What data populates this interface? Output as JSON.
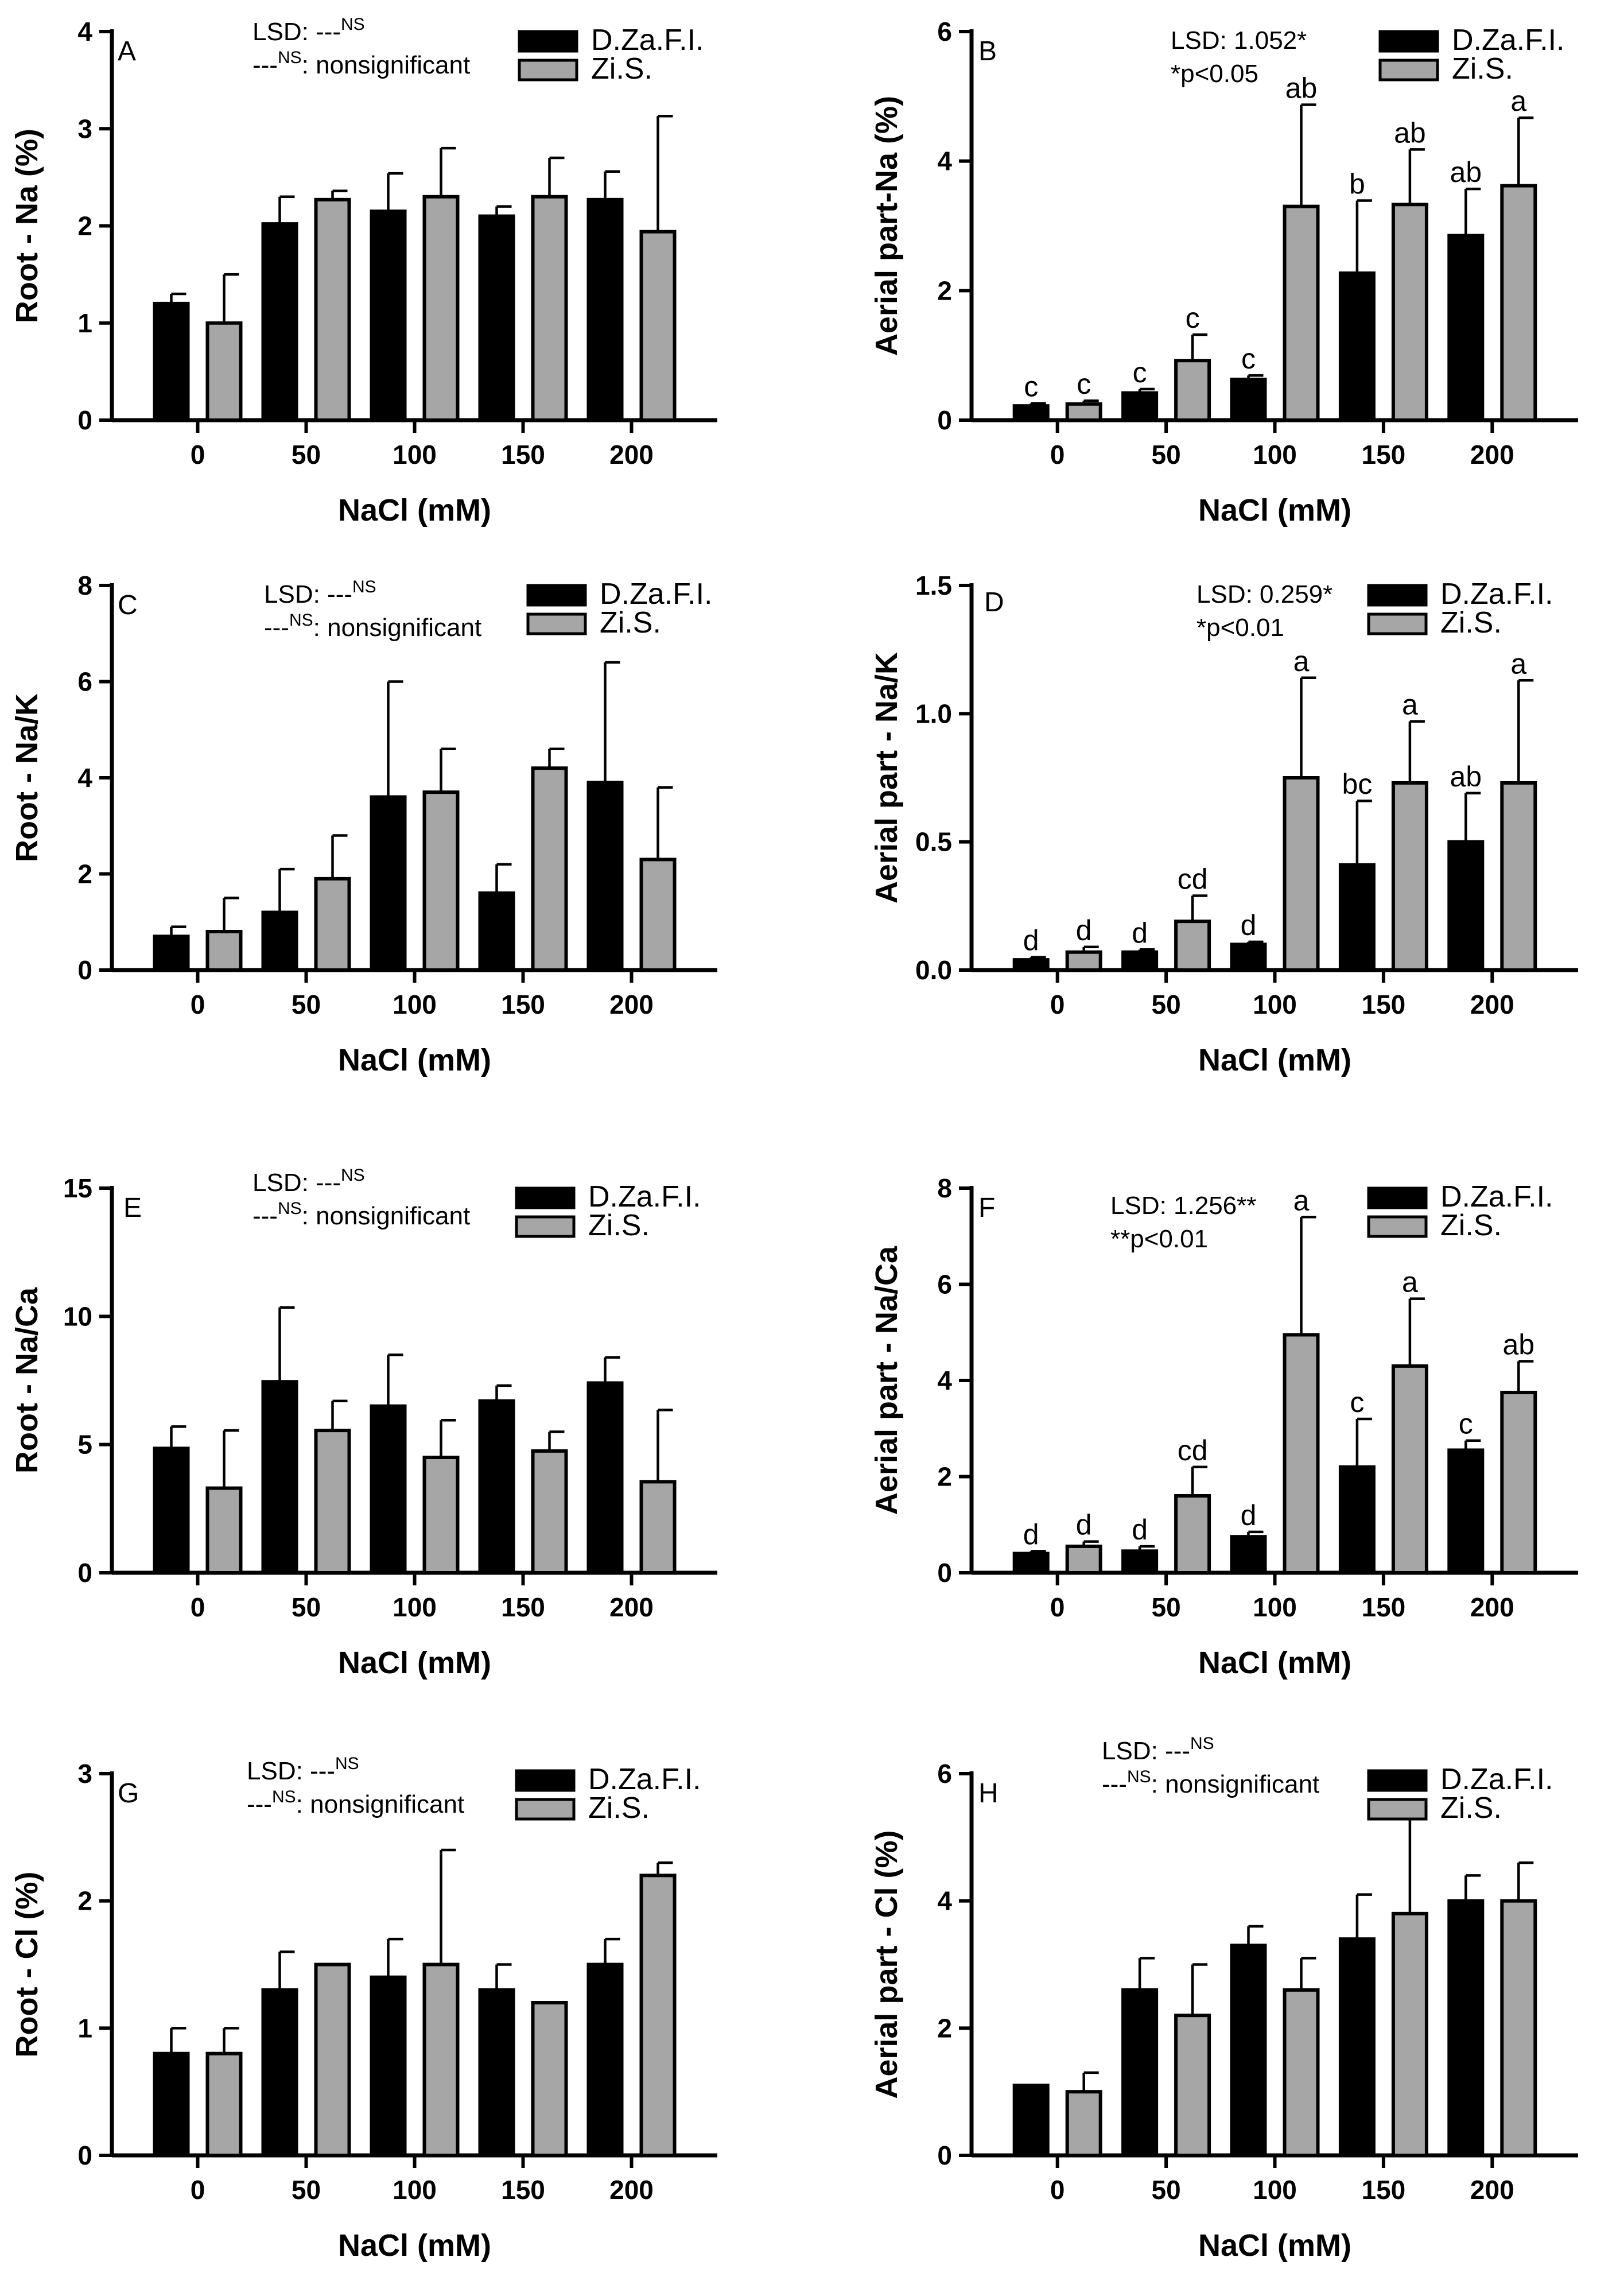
{
  "legend": {
    "series": [
      {
        "name": "D.Za.F.I.",
        "color": "#000000"
      },
      {
        "name": "Zi.S.",
        "color": "#a6a6a6"
      }
    ]
  },
  "chart_data": [
    {
      "panel": "A",
      "type": "bar",
      "title": "",
      "xlabel": "NaCl (mM)",
      "ylabel": "Root - Na (%)",
      "categories": [
        "0",
        "50",
        "100",
        "150",
        "200"
      ],
      "ylim": [
        0,
        4
      ],
      "yticks": [
        "0",
        "1",
        "2",
        "3",
        "4"
      ],
      "series": [
        {
          "name": "D.Za.F.I.",
          "values": [
            1.2,
            2.02,
            2.15,
            2.1,
            2.27
          ],
          "errors": [
            0.1,
            0.28,
            0.39,
            0.1,
            0.29
          ],
          "labels": []
        },
        {
          "name": "Zi.S.",
          "values": [
            1.0,
            2.27,
            2.3,
            2.3,
            1.94
          ],
          "errors": [
            0.5,
            0.09,
            0.5,
            0.4,
            1.19
          ],
          "labels": []
        }
      ],
      "annotation": {
        "lsd": "LSD: ---",
        "lsd_sup": "NS",
        "note_prefix": "---",
        "note_sup": "NS",
        "note": ": nonsignificant"
      }
    },
    {
      "panel": "B",
      "type": "bar",
      "title": "",
      "xlabel": "NaCl (mM)",
      "ylabel": "Aerial part-Na (%)",
      "categories": [
        "0",
        "50",
        "100",
        "150",
        "200"
      ],
      "ylim": [
        0,
        6
      ],
      "yticks": [
        "0",
        "2",
        "4",
        "6"
      ],
      "series": [
        {
          "name": "D.Za.F.I.",
          "values": [
            0.22,
            0.42,
            0.63,
            2.27,
            2.85
          ],
          "errors": [
            0.04,
            0.06,
            0.06,
            1.12,
            0.72
          ],
          "labels": [
            "c",
            "c",
            "c",
            "b",
            "ab"
          ]
        },
        {
          "name": "Zi.S.",
          "values": [
            0.25,
            0.92,
            3.3,
            3.33,
            3.62
          ],
          "errors": [
            0.05,
            0.4,
            1.57,
            0.85,
            1.05
          ],
          "labels": [
            "c",
            "c",
            "ab",
            "ab",
            "a"
          ]
        }
      ],
      "annotation": {
        "lsd": "LSD: 1.052*",
        "lsd_sup": "",
        "note_prefix": "",
        "note_sup": "",
        "note": "*p<0.05"
      }
    },
    {
      "panel": "C",
      "type": "bar",
      "title": "",
      "xlabel": "NaCl (mM)",
      "ylabel": "Root - Na/K",
      "categories": [
        "0",
        "50",
        "100",
        "150",
        "200"
      ],
      "ylim": [
        0,
        8
      ],
      "yticks": [
        "0",
        "2",
        "4",
        "6",
        "8"
      ],
      "series": [
        {
          "name": "D.Za.F.I.",
          "values": [
            0.7,
            1.2,
            3.6,
            1.6,
            3.9
          ],
          "errors": [
            0.2,
            0.9,
            2.4,
            0.6,
            2.5
          ],
          "labels": []
        },
        {
          "name": "Zi.S.",
          "values": [
            0.8,
            1.9,
            3.7,
            4.2,
            2.3
          ],
          "errors": [
            0.7,
            0.9,
            0.9,
            0.4,
            1.5
          ],
          "labels": []
        }
      ],
      "annotation": {
        "lsd": "LSD: ---",
        "lsd_sup": "NS",
        "note_prefix": "---",
        "note_sup": "NS",
        "note": ": nonsignificant"
      }
    },
    {
      "panel": "D",
      "type": "bar",
      "title": "",
      "xlabel": "NaCl (mM)",
      "ylabel": "Aerial part - Na/K",
      "categories": [
        "0",
        "50",
        "100",
        "150",
        "200"
      ],
      "ylim": [
        0,
        1.5
      ],
      "yticks": [
        "0.0",
        "0.5",
        "1.0",
        "1.5"
      ],
      "series": [
        {
          "name": "D.Za.F.I.",
          "values": [
            0.04,
            0.07,
            0.1,
            0.41,
            0.5
          ],
          "errors": [
            0.01,
            0.01,
            0.01,
            0.25,
            0.19
          ],
          "labels": [
            "d",
            "d",
            "d",
            "bc",
            "ab"
          ]
        },
        {
          "name": "Zi.S.",
          "values": [
            0.07,
            0.19,
            0.75,
            0.73,
            0.73
          ],
          "errors": [
            0.02,
            0.1,
            0.39,
            0.24,
            0.4
          ],
          "labels": [
            "d",
            "cd",
            "a",
            "a",
            "a"
          ]
        }
      ],
      "annotation": {
        "lsd": "LSD: 0.259*",
        "lsd_sup": "",
        "note_prefix": "",
        "note_sup": "",
        "note": "*p<0.01"
      }
    },
    {
      "panel": "E",
      "type": "bar",
      "title": "",
      "xlabel": "NaCl (mM)",
      "ylabel": "Root - Na/Ca",
      "categories": [
        "0",
        "50",
        "100",
        "150",
        "200"
      ],
      "ylim": [
        0,
        15
      ],
      "yticks": [
        "0",
        "5",
        "10",
        "15"
      ],
      "series": [
        {
          "name": "D.Za.F.I.",
          "values": [
            4.85,
            7.45,
            6.5,
            6.7,
            7.4
          ],
          "errors": [
            0.85,
            2.9,
            2.0,
            0.6,
            1.0
          ],
          "labels": []
        },
        {
          "name": "Zi.S.",
          "values": [
            3.3,
            5.55,
            4.5,
            4.75,
            3.55
          ],
          "errors": [
            2.25,
            1.15,
            1.45,
            0.75,
            2.8
          ],
          "labels": []
        }
      ],
      "annotation": {
        "lsd": "LSD: ---",
        "lsd_sup": "NS",
        "note_prefix": "---",
        "note_sup": "NS",
        "note": ": nonsignificant"
      }
    },
    {
      "panel": "F",
      "type": "bar",
      "title": "",
      "xlabel": "NaCl (mM)",
      "ylabel": "Aerial part - Na/Ca",
      "categories": [
        "0",
        "50",
        "100",
        "150",
        "200"
      ],
      "ylim": [
        0,
        8
      ],
      "yticks": [
        "0",
        "2",
        "4",
        "6",
        "8"
      ],
      "series": [
        {
          "name": "D.Za.F.I.",
          "values": [
            0.4,
            0.45,
            0.75,
            2.2,
            2.55
          ],
          "errors": [
            0.05,
            0.1,
            0.1,
            1.0,
            0.2
          ],
          "labels": [
            "d",
            "d",
            "d",
            "c",
            "c"
          ]
        },
        {
          "name": "Zi.S.",
          "values": [
            0.55,
            1.6,
            4.95,
            4.3,
            3.75
          ],
          "errors": [
            0.1,
            0.6,
            2.45,
            1.4,
            0.65
          ],
          "labels": [
            "d",
            "cd",
            "a",
            "a",
            "ab"
          ]
        }
      ],
      "annotation": {
        "lsd": "LSD: 1.256**",
        "lsd_sup": "",
        "note_prefix": "",
        "note_sup": "",
        "note": "**p<0.01"
      }
    },
    {
      "panel": "G",
      "type": "bar",
      "title": "",
      "xlabel": "NaCl (mM)",
      "ylabel": "Root - Cl (%)",
      "categories": [
        "0",
        "50",
        "100",
        "150",
        "200"
      ],
      "ylim": [
        0,
        3
      ],
      "yticks": [
        "0",
        "1",
        "2",
        "3"
      ],
      "series": [
        {
          "name": "D.Za.F.I.",
          "values": [
            0.8,
            1.3,
            1.4,
            1.3,
            1.5
          ],
          "errors": [
            0.2,
            0.3,
            0.3,
            0.2,
            0.2
          ],
          "labels": []
        },
        {
          "name": "Zi.S.",
          "values": [
            0.8,
            1.5,
            1.5,
            1.2,
            2.2
          ],
          "errors": [
            0.2,
            0.0,
            0.9,
            0.0,
            0.1
          ],
          "labels": []
        }
      ],
      "annotation": {
        "lsd": "LSD: ---",
        "lsd_sup": "NS",
        "note_prefix": "---",
        "note_sup": "NS",
        "note": ": nonsignificant"
      }
    },
    {
      "panel": "H",
      "type": "bar",
      "title": "",
      "xlabel": "NaCl (mM)",
      "ylabel": "Aerial part - Cl (%)",
      "categories": [
        "0",
        "50",
        "100",
        "150",
        "200"
      ],
      "ylim": [
        0,
        6
      ],
      "yticks": [
        "0",
        "2",
        "4",
        "6"
      ],
      "series": [
        {
          "name": "D.Za.F.I.",
          "values": [
            1.1,
            2.6,
            3.3,
            3.4,
            4.0
          ],
          "errors": [
            0.0,
            0.5,
            0.3,
            0.7,
            0.4
          ],
          "labels": []
        },
        {
          "name": "Zi.S.",
          "values": [
            1.0,
            2.2,
            2.6,
            3.8,
            4.0
          ],
          "errors": [
            0.3,
            0.8,
            0.5,
            1.5,
            0.6
          ],
          "labels": []
        }
      ],
      "annotation": {
        "lsd": "LSD: ---",
        "lsd_sup": "NS",
        "note_prefix": "---",
        "note_sup": "NS",
        "note": ": nonsignificant"
      }
    }
  ]
}
